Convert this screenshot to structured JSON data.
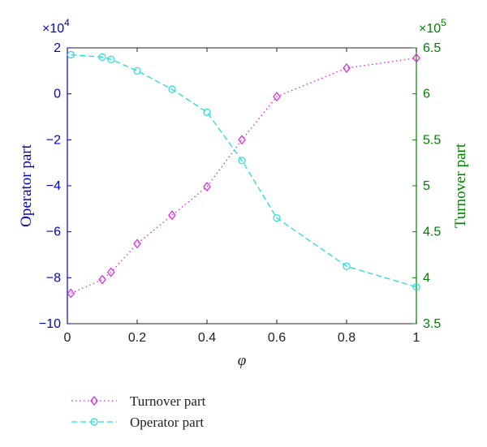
{
  "chart_data": {
    "type": "line",
    "xlabel": "φ",
    "x_ticks": [
      "0",
      "0.2",
      "0.4",
      "0.6",
      "0.8",
      "1"
    ],
    "xlim": [
      0,
      1
    ],
    "left_axis": {
      "label": "Operator part",
      "color": "#0000cc",
      "multiplier": "×10",
      "exponent": "4",
      "ylim": [
        -10,
        2
      ],
      "ticks": [
        2,
        0,
        -2,
        -4,
        -6,
        -8,
        -10
      ],
      "tick_labels": [
        "2",
        "0",
        "−2",
        "−4",
        "−6",
        "−8",
        "−10"
      ]
    },
    "right_axis": {
      "label": "Turnover part",
      "color": "#008000",
      "multiplier": "×10",
      "exponent": "5",
      "ylim": [
        3.5,
        6.5
      ],
      "ticks": [
        6.5,
        6,
        5.5,
        5,
        4.5,
        4,
        3.5
      ],
      "tick_labels": [
        "6.5",
        "6",
        "5.5",
        "5",
        "4.5",
        "4",
        "3.5"
      ]
    },
    "series": [
      {
        "name": "Turnover part",
        "axis": "right",
        "color": "#dd22dd",
        "line_style": "dotted",
        "marker": "diamond",
        "x": [
          0.01,
          0.1,
          0.125,
          0.2,
          0.3,
          0.4,
          0.5,
          0.6,
          0.8,
          1.0
        ],
        "values": [
          3.83,
          3.98,
          4.06,
          4.37,
          4.68,
          4.99,
          5.5,
          5.97,
          6.28,
          6.39
        ]
      },
      {
        "name": "Operator part",
        "axis": "left",
        "color": "#22dddd",
        "line_style": "dashed",
        "marker": "circle",
        "x": [
          0.01,
          0.1,
          0.125,
          0.2,
          0.3,
          0.4,
          0.5,
          0.6,
          0.8,
          1.0
        ],
        "values": [
          1.7,
          1.6,
          1.5,
          1.0,
          0.2,
          -0.8,
          -2.9,
          -5.4,
          -7.5,
          -8.4
        ]
      }
    ],
    "legend": {
      "placement": "below",
      "entries": [
        "Turnover part",
        "Operator part"
      ]
    },
    "grid": false
  }
}
